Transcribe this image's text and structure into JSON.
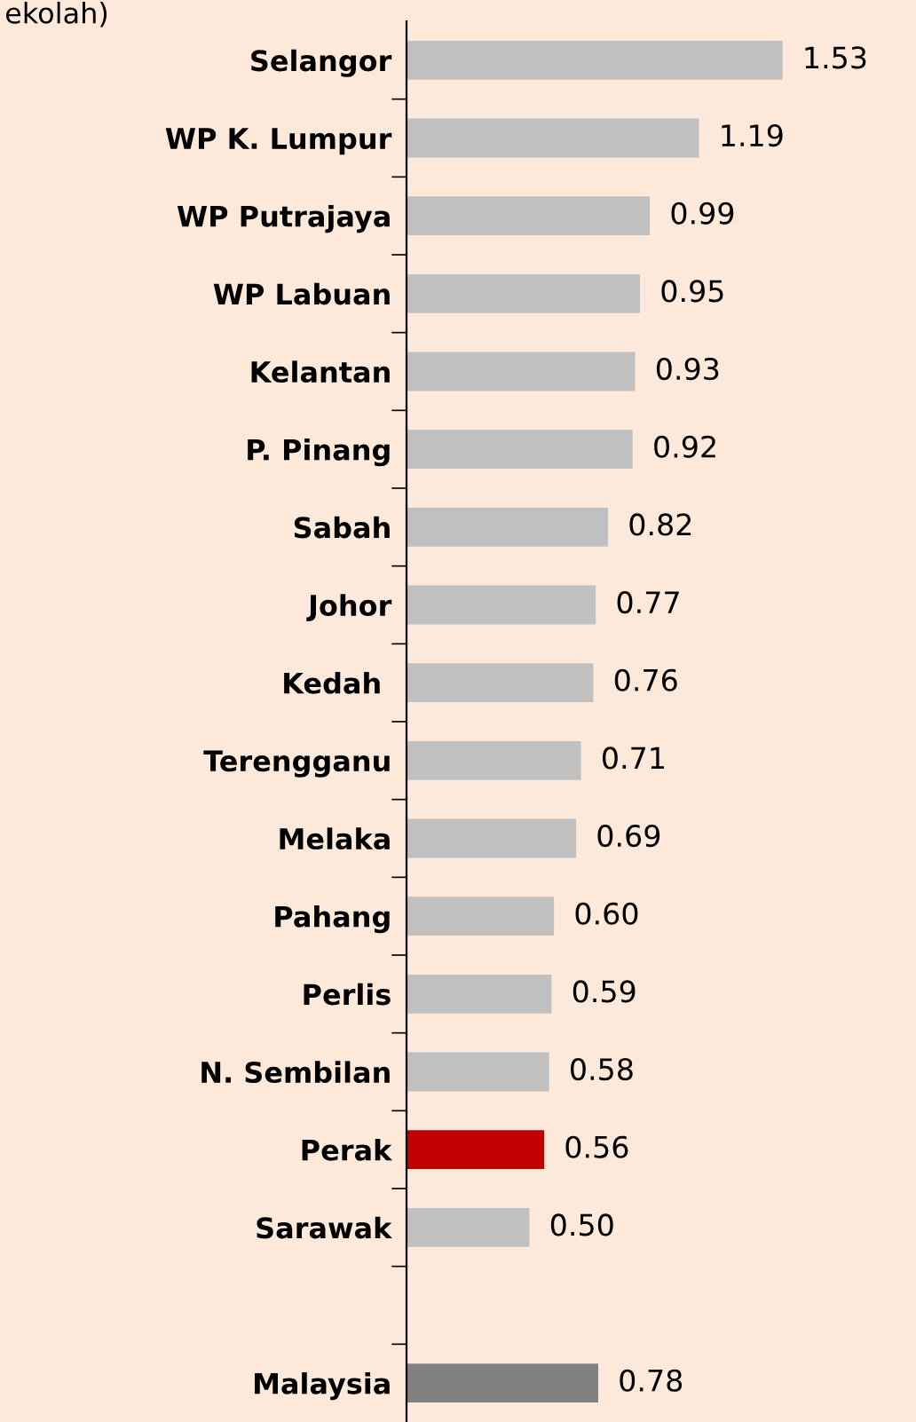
{
  "chart_data": {
    "type": "bar",
    "orientation": "horizontal",
    "title": "ekolah)",
    "categories": [
      "Selangor",
      "WP K. Lumpur",
      "WP Putrajaya",
      "WP Labuan",
      "Kelantan",
      "P. Pinang",
      "Sabah",
      "Johor",
      "Kedah ",
      "Terengganu",
      "Melaka",
      "Pahang",
      "Perlis",
      "N. Sembilan",
      "Perak",
      "Sarawak",
      null,
      "Malaysia"
    ],
    "values": [
      1.53,
      1.19,
      0.99,
      0.95,
      0.93,
      0.92,
      0.82,
      0.77,
      0.76,
      0.71,
      0.69,
      0.6,
      0.59,
      0.58,
      0.56,
      0.5,
      null,
      0.78
    ],
    "value_labels": [
      "1.53",
      "1.19",
      "0.99",
      "0.95",
      "0.93",
      "0.92",
      "0.82",
      "0.77",
      "0.76",
      "0.71",
      "0.69",
      "0.60",
      "0.59",
      "0.58",
      "0.56",
      "0.50",
      null,
      "0.78"
    ],
    "colors": [
      "#c0c0c0",
      "#c0c0c0",
      "#c0c0c0",
      "#c0c0c0",
      "#c0c0c0",
      "#c0c0c0",
      "#c0c0c0",
      "#c0c0c0",
      "#c0c0c0",
      "#c0c0c0",
      "#c0c0c0",
      "#c0c0c0",
      "#c0c0c0",
      "#c0c0c0",
      "#c00000",
      "#c0c0c0",
      null,
      "#808080"
    ],
    "tick_labels": "y"
  }
}
